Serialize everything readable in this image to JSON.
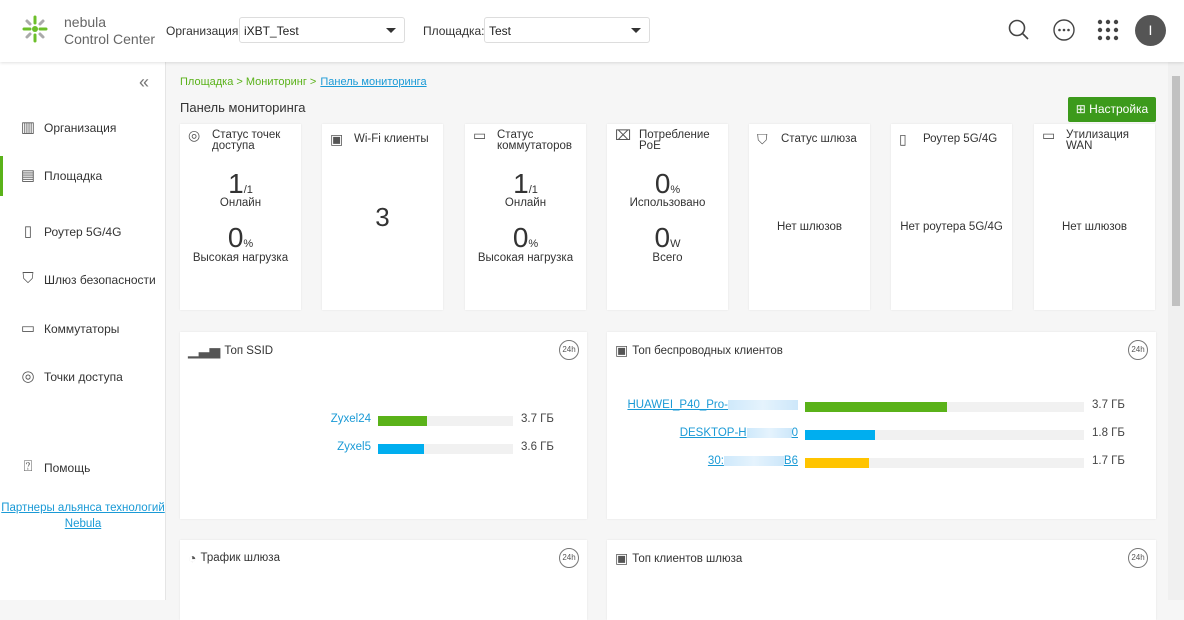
{
  "header": {
    "brand_line1": "nebula",
    "brand_line2": "Control Center",
    "org_label": "Организация:",
    "org_value": "iXBT_Test",
    "site_label": "Площадка:",
    "site_value": "Test",
    "avatar_initial": "I"
  },
  "sidebar": {
    "items": [
      {
        "label": "Организация",
        "icon": "building-icon"
      },
      {
        "label": "Площадка",
        "icon": "site-icon",
        "active": true
      },
      {
        "label": "Роутер 5G/4G",
        "icon": "phone-icon"
      },
      {
        "label": "Шлюз безопасности",
        "icon": "shield-icon"
      },
      {
        "label": "Коммутаторы",
        "icon": "switch-icon"
      },
      {
        "label": "Точки доступа",
        "icon": "wifi-icon"
      },
      {
        "label": "Помощь",
        "icon": "help-icon"
      }
    ],
    "partner_link": "Партнеры альянса технологий Nebula"
  },
  "main": {
    "breadcrumb": {
      "part1": "Площадка > Мониторинг >",
      "current": "Панель мониторинга"
    },
    "title": "Панель мониторинга",
    "settings_button": "Настройка",
    "cards": [
      {
        "title": "Статус точек доступа",
        "v1": "1",
        "v1_unit": "/1",
        "l1": "Онлайн",
        "v2": "0",
        "v2_unit": "%",
        "l2": "Высокая нагрузка"
      },
      {
        "title": "Wi-Fi клиенты",
        "value": "3"
      },
      {
        "title": "Статус коммутаторов",
        "v1": "1",
        "v1_unit": "/1",
        "l1": "Онлайн",
        "v2": "0",
        "v2_unit": "%",
        "l2": "Высокая нагрузка"
      },
      {
        "title": "Потребление PoE",
        "v1": "0",
        "v1_unit": "%",
        "l1": "Использовано",
        "v2": "0",
        "v2_unit": "W",
        "l2": "Всего"
      },
      {
        "title": "Статус шлюза",
        "text": "Нет шлюзов"
      },
      {
        "title": "Роутер 5G/4G",
        "text": "Нет роутера 5G/4G"
      },
      {
        "title": "Утилизация WAN",
        "text": "Нет шлюзов"
      }
    ],
    "top_ssid": {
      "title": "Топ SSID",
      "badge": "24h",
      "rows": [
        {
          "name": "Zyxel24",
          "value": "3.7 ГБ",
          "fraction": 0.36,
          "color": "#5ab219"
        },
        {
          "name": "Zyxel5",
          "value": "3.6 ГБ",
          "fraction": 0.34,
          "color": "#00aeef"
        }
      ]
    },
    "top_clients": {
      "title": "Топ беспроводных клиентов",
      "badge": "24h",
      "rows": [
        {
          "name": "HUAWEI_P40_Pro-",
          "suffix": "",
          "value": "3.7 ГБ",
          "fraction": 0.51,
          "color": "#5ab219"
        },
        {
          "name": "DESKTOP-H",
          "suffix": "0",
          "value": "1.8 ГБ",
          "fraction": 0.25,
          "color": "#00aeef"
        },
        {
          "name": "30:",
          "suffix": "B6",
          "value": "1.7 ГБ",
          "fraction": 0.23,
          "color": "#ffc400"
        }
      ]
    },
    "gateway_traffic": {
      "title": "Трафик шлюза",
      "badge": "24h"
    },
    "gateway_clients": {
      "title": "Топ клиентов шлюза",
      "badge": "24h"
    }
  }
}
